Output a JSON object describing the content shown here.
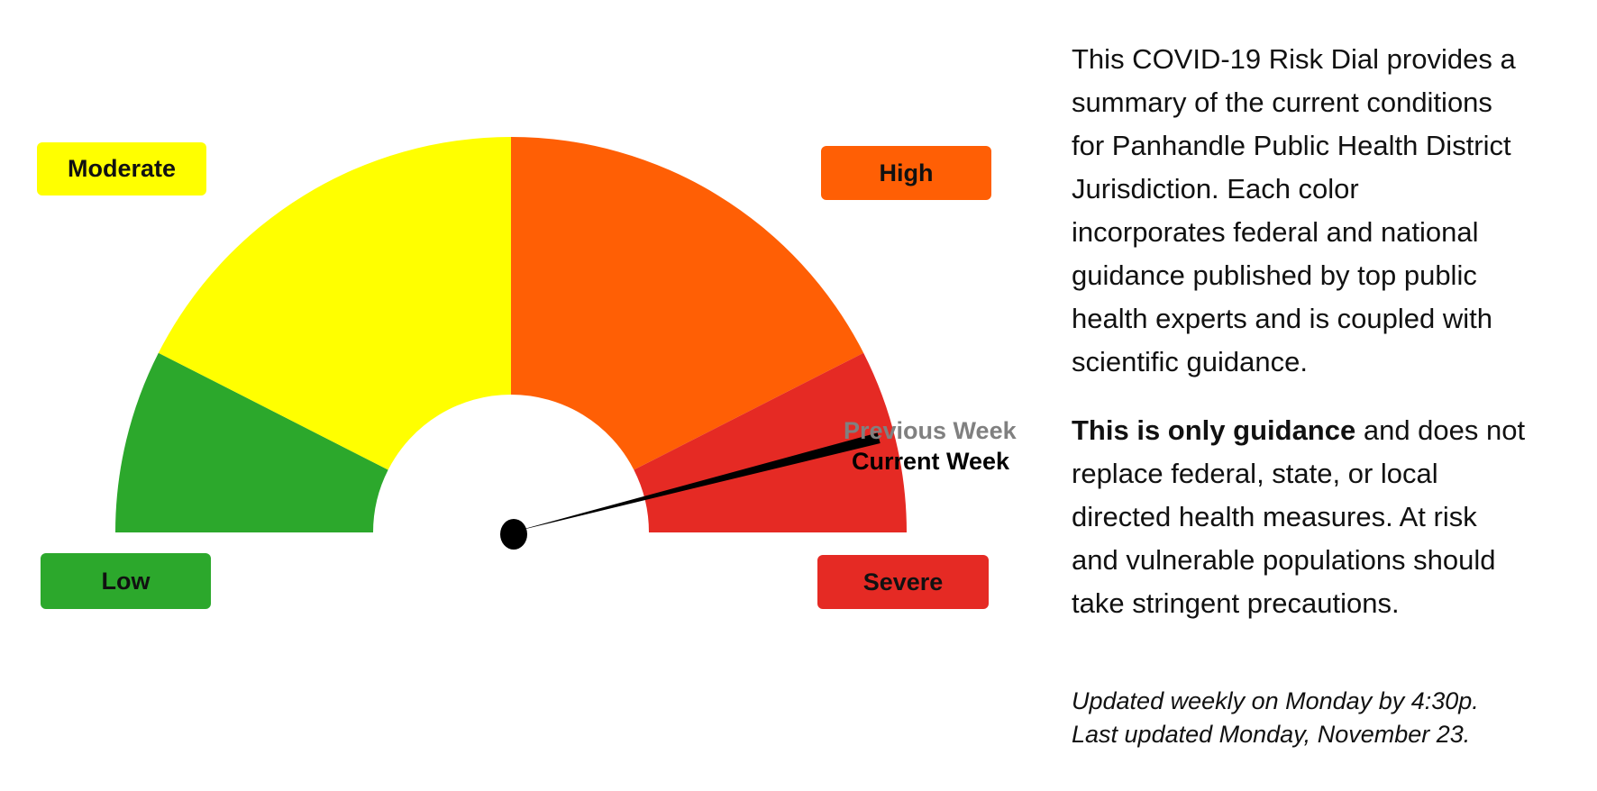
{
  "chart_data": {
    "type": "gauge",
    "segments": [
      {
        "name": "Low",
        "from": 0,
        "to": 15,
        "color": "#2ca82c"
      },
      {
        "name": "Moderate",
        "from": 15,
        "to": 50,
        "color": "#ffff00"
      },
      {
        "name": "High",
        "from": 50,
        "to": 85,
        "color": "#ff5f05"
      },
      {
        "name": "Severe",
        "from": 85,
        "to": 100,
        "color": "#e52a24"
      }
    ],
    "range": [
      0,
      100
    ],
    "needle": {
      "current_week": 92,
      "previous_week": 92
    },
    "markers": {
      "previous_label": "Previous Week",
      "current_label": "Current Week"
    }
  },
  "labels": {
    "low": "Low",
    "moderate": "Moderate",
    "high": "High",
    "severe": "Severe"
  },
  "description": {
    "para1": [
      "This COVID-19 Risk Dial provides a",
      "summary of the current conditions",
      "for Panhandle Public Health District",
      "Jurisdiction. Each color",
      "incorporates federal and national",
      "guidance published by top public",
      "health experts and is coupled with",
      "scientific guidance."
    ],
    "para2_bold": "This is only guidance",
    "para2_first_rest": " and does not",
    "para2": [
      "replace federal, state, or local",
      "directed health measures. At risk",
      "and vulnerable populations should",
      "take stringent precautions."
    ]
  },
  "updated": {
    "line1": "Updated weekly on Monday by 4:30p.",
    "line2": "Last updated Monday, November 23."
  }
}
